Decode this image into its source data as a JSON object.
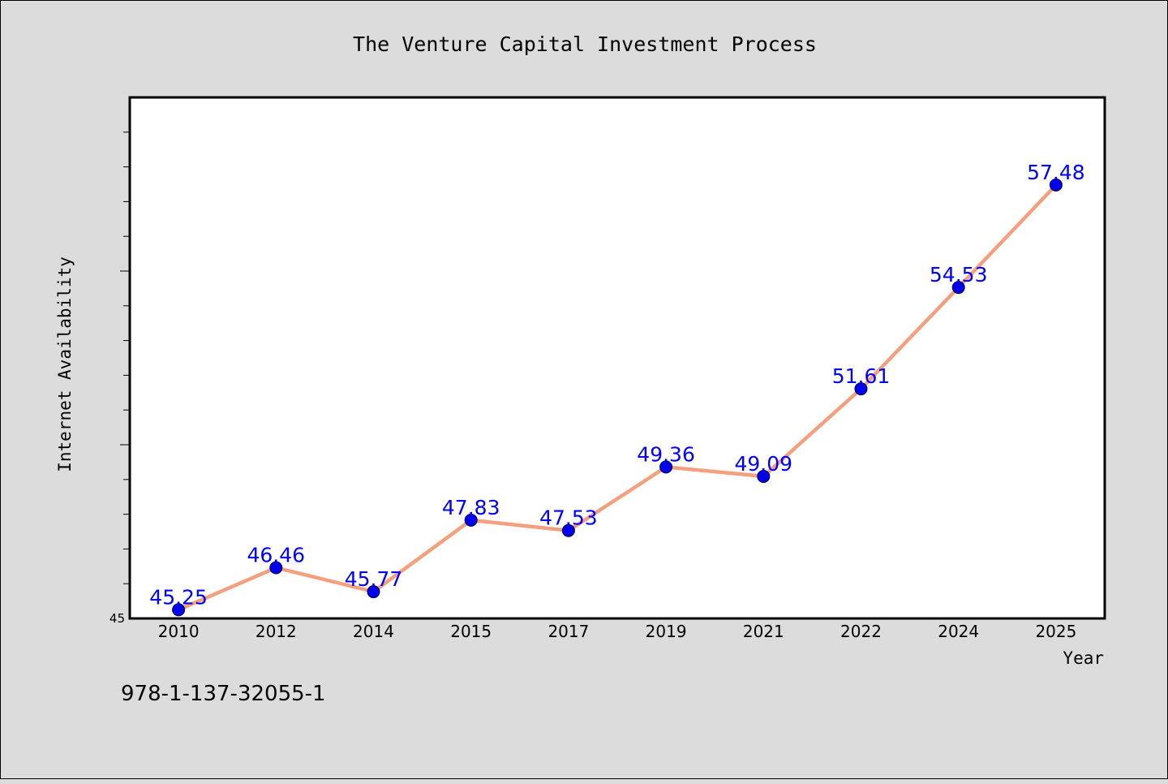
{
  "chart_data": {
    "type": "line",
    "title": "The Venture Capital Investment Process",
    "xlabel": "Year",
    "ylabel": "Internet Availability",
    "categories": [
      "2010",
      "2012",
      "2014",
      "2015",
      "2017",
      "2019",
      "2021",
      "2022",
      "2024",
      "2025"
    ],
    "values": [
      45.25,
      46.46,
      45.77,
      47.83,
      47.53,
      49.36,
      49.09,
      51.61,
      54.53,
      57.48
    ],
    "data_labels": [
      "45.25",
      "46.46",
      "45.77",
      "47.83",
      "47.53",
      "49.36",
      "49.09",
      "51.61",
      "54.53",
      "57.48"
    ],
    "y_tick_labels": [
      "45"
    ],
    "ylim": [
      45,
      60
    ],
    "grid": false,
    "legend": "none",
    "colors": {
      "line": "#f4a07e",
      "marker": "#0000ee",
      "data_label": "#0000ff",
      "background": "#dcdcdc",
      "plot_background": "#ffffff"
    }
  },
  "footer": {
    "code": "978-1-137-32055-1"
  }
}
